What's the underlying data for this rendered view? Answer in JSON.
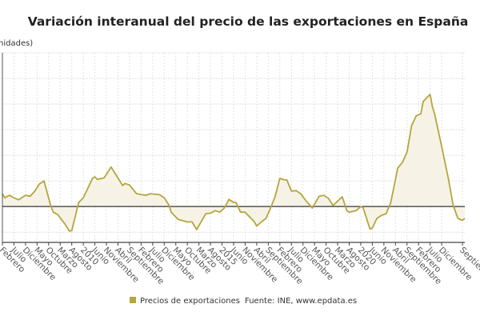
{
  "chart_data": {
    "type": "line",
    "title": "Variación interanual del precio de las exportaciones en España",
    "ylabel": "nidades)",
    "xlabel": "",
    "x_start": "Febrero 2007",
    "xlim": [
      0,
      200
    ],
    "ylim": [
      -7,
      30
    ],
    "y_grid_step": 5,
    "grid": true,
    "legend_position": "bottom",
    "x_ticks": [
      {
        "m": 0,
        "label": "Febrero"
      },
      {
        "m": 5,
        "label": "Julio"
      },
      {
        "m": 10,
        "label": "Diciembre"
      },
      {
        "m": 15,
        "label": "Mayo"
      },
      {
        "m": 20,
        "label": "Octubre"
      },
      {
        "m": 25,
        "label": "Marzo"
      },
      {
        "m": 30,
        "label": "Agosto"
      },
      {
        "m": 35,
        "label": "2010"
      },
      {
        "m": 40,
        "label": "Junio"
      },
      {
        "m": 45,
        "label": "Noviembre"
      },
      {
        "m": 50,
        "label": "Abril"
      },
      {
        "m": 55,
        "label": "Septiembre"
      },
      {
        "m": 60,
        "label": "Febrero"
      },
      {
        "m": 65,
        "label": "Julio"
      },
      {
        "m": 70,
        "label": "Diciembre"
      },
      {
        "m": 75,
        "label": "Mayo"
      },
      {
        "m": 80,
        "label": "Octubre"
      },
      {
        "m": 85,
        "label": "Marzo"
      },
      {
        "m": 90,
        "label": "Agosto"
      },
      {
        "m": 95,
        "label": "2015"
      },
      {
        "m": 100,
        "label": "Junio"
      },
      {
        "m": 105,
        "label": "Noviembre"
      },
      {
        "m": 110,
        "label": "Abril"
      },
      {
        "m": 115,
        "label": "Septiembre"
      },
      {
        "m": 120,
        "label": "Febrero"
      },
      {
        "m": 125,
        "label": "Julio"
      },
      {
        "m": 130,
        "label": "Diciembre"
      },
      {
        "m": 135,
        "label": "Mayo"
      },
      {
        "m": 140,
        "label": "Octubre"
      },
      {
        "m": 145,
        "label": "Marzo"
      },
      {
        "m": 150,
        "label": "Agosto"
      },
      {
        "m": 155,
        "label": "2020"
      },
      {
        "m": 160,
        "label": "Junio"
      },
      {
        "m": 165,
        "label": "Noviembre"
      },
      {
        "m": 170,
        "label": "Abril"
      },
      {
        "m": 175,
        "label": "Septiembre"
      },
      {
        "m": 180,
        "label": "Febrero"
      },
      {
        "m": 185,
        "label": "Julio"
      },
      {
        "m": 190,
        "label": "Diciembre"
      },
      {
        "m": 199,
        "label": "Septiembre"
      }
    ],
    "series": [
      {
        "name": "Precios de exportaciones",
        "color": "#b5a53e",
        "fill": "#f6f3e6",
        "points": [
          [
            0,
            2.5
          ],
          [
            1,
            1.7
          ],
          [
            3,
            2.2
          ],
          [
            5,
            1.7
          ],
          [
            7,
            1.3
          ],
          [
            10,
            2.2
          ],
          [
            12,
            2.0
          ],
          [
            14,
            3.0
          ],
          [
            16,
            4.4
          ],
          [
            18,
            5.0
          ],
          [
            21,
            0
          ],
          [
            22,
            -1.1
          ],
          [
            24,
            -1.6
          ],
          [
            27,
            -3.4
          ],
          [
            29,
            -4.8
          ],
          [
            30,
            -4.7
          ],
          [
            33,
            0.8
          ],
          [
            35,
            1.7
          ],
          [
            39,
            5.5
          ],
          [
            40,
            5.8
          ],
          [
            41,
            5.3
          ],
          [
            44,
            5.6
          ],
          [
            47,
            7.7
          ],
          [
            48,
            7.0
          ],
          [
            52,
            4.1
          ],
          [
            53,
            4.5
          ],
          [
            55,
            4.2
          ],
          [
            58,
            2.5
          ],
          [
            62,
            2.2
          ],
          [
            64,
            2.5
          ],
          [
            68,
            2.3
          ],
          [
            70,
            1.7
          ],
          [
            72,
            0.3
          ],
          [
            73,
            -1.1
          ],
          [
            76,
            -2.5
          ],
          [
            80,
            -3.0
          ],
          [
            82,
            -3.0
          ],
          [
            84,
            -4.5
          ],
          [
            88,
            -1.4
          ],
          [
            90,
            -1.3
          ],
          [
            92,
            -0.8
          ],
          [
            94,
            -1.1
          ],
          [
            96,
            -0.3
          ],
          [
            98,
            1.4
          ],
          [
            100,
            0.8
          ],
          [
            101,
            0.8
          ],
          [
            103,
            -1.1
          ],
          [
            105,
            -1.1
          ],
          [
            109,
            -3.0
          ],
          [
            110,
            -3.8
          ],
          [
            112,
            -3.0
          ],
          [
            114,
            -2.3
          ],
          [
            116,
            -0.3
          ],
          [
            118,
            2.0
          ],
          [
            120,
            5.5
          ],
          [
            122,
            5.2
          ],
          [
            123,
            5.2
          ],
          [
            125,
            3.0
          ],
          [
            127,
            3.1
          ],
          [
            129,
            2.5
          ],
          [
            131,
            1.3
          ],
          [
            134,
            -0.3
          ],
          [
            137,
            2.0
          ],
          [
            139,
            2.2
          ],
          [
            141,
            1.6
          ],
          [
            143,
            0.2
          ],
          [
            147,
            1.9
          ],
          [
            149,
            -0.8
          ],
          [
            150,
            -1.1
          ],
          [
            153,
            -0.8
          ],
          [
            155,
            0
          ],
          [
            156,
            -0.2
          ],
          [
            159,
            -4.4
          ],
          [
            160,
            -4.2
          ],
          [
            162,
            -2.3
          ],
          [
            164,
            -1.7
          ],
          [
            166,
            -1.4
          ],
          [
            168,
            0.8
          ],
          [
            171,
            7.5
          ],
          [
            173,
            8.6
          ],
          [
            175,
            10.6
          ],
          [
            177,
            15.8
          ],
          [
            179,
            17.7
          ],
          [
            181,
            18.1
          ],
          [
            182,
            20.5
          ],
          [
            185,
            21.9
          ],
          [
            186,
            19.5
          ],
          [
            187,
            18.0
          ],
          [
            190,
            11.7
          ],
          [
            193,
            5.2
          ],
          [
            195,
            0.2
          ],
          [
            197,
            -2.3
          ],
          [
            199,
            -2.7
          ],
          [
            200,
            -2.3
          ]
        ]
      }
    ]
  },
  "legend": {
    "label": "Precios de exportaciones"
  },
  "source": "Fuente: INE, www.epdata.es"
}
